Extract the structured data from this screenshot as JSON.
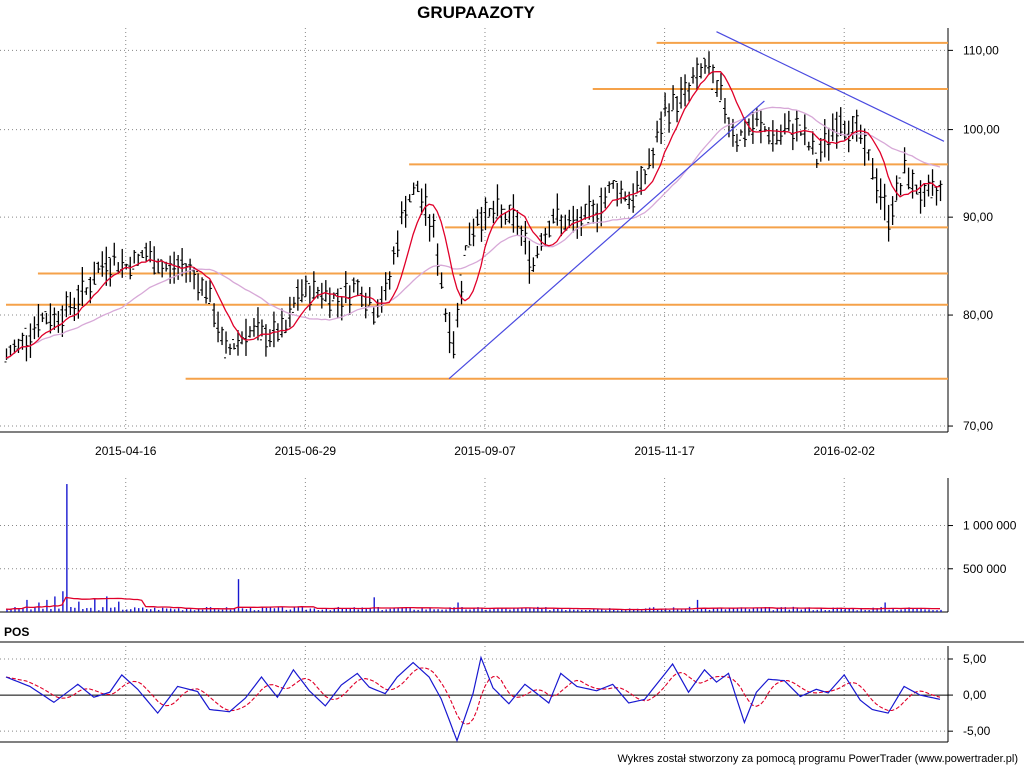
{
  "chart_data": [
    {
      "type": "candlestick",
      "title": "GRUPAAZOTY",
      "x_tick_labels": [
        "2015-04-16",
        "2015-06-29",
        "2015-09-07",
        "2015-11-17",
        "2016-02-02"
      ],
      "y_tick_labels": [
        "110,00",
        "100,00",
        "90,00",
        "80,00",
        "70,00"
      ],
      "y_tick_values": [
        110,
        100,
        90,
        80,
        70
      ],
      "ylim": [
        69.5,
        113
      ],
      "scale": "log",
      "grid": true,
      "colors": {
        "bars": "#000000",
        "sma_short": "#e0002a",
        "sma_long": "#d7a8d7",
        "trendline": "#4a4ae0",
        "levels": "#f5a24a"
      },
      "horizontal_levels": [
        {
          "value": 111.0,
          "from_index": 163
        },
        {
          "value": 105.0,
          "from_index": 147
        },
        {
          "value": 95.9,
          "from_index": 101
        },
        {
          "value": 88.9,
          "from_index": 110
        },
        {
          "value": 84.1,
          "from_index": 8
        },
        {
          "value": 81.0,
          "from_index": 0
        },
        {
          "value": 74.1,
          "from_index": 45
        }
      ],
      "trendlines": [
        {
          "from": [
            111,
            74.1
          ],
          "to": [
            190,
            103.5
          ]
        },
        {
          "from": [
            178,
            112.5
          ],
          "to": [
            235,
            98.6
          ]
        }
      ],
      "n_sessions": 235,
      "x_tick_indices": [
        30,
        75,
        120,
        165,
        210
      ],
      "price_anchors": [
        [
          0,
          76.0
        ],
        [
          5,
          78.0
        ],
        [
          8,
          79.5
        ],
        [
          12,
          79.8
        ],
        [
          15,
          80.5
        ],
        [
          20,
          82.5
        ],
        [
          25,
          85.5
        ],
        [
          30,
          85.0
        ],
        [
          35,
          86.0
        ],
        [
          40,
          84.5
        ],
        [
          45,
          85.0
        ],
        [
          50,
          82.5
        ],
        [
          55,
          76.5
        ],
        [
          60,
          78.5
        ],
        [
          65,
          78.0
        ],
        [
          70,
          78.5
        ],
        [
          73,
          82.0
        ],
        [
          78,
          82.5
        ],
        [
          83,
          81.5
        ],
        [
          88,
          83.0
        ],
        [
          92,
          80.5
        ],
        [
          95,
          82.0
        ],
        [
          100,
          91.5
        ],
        [
          103,
          93.0
        ],
        [
          107,
          88.5
        ],
        [
          110,
          80.5
        ],
        [
          112,
          77.0
        ],
        [
          115,
          86.5
        ],
        [
          118,
          90.0
        ],
        [
          123,
          90.5
        ],
        [
          128,
          89.5
        ],
        [
          132,
          85.0
        ],
        [
          134,
          88.0
        ],
        [
          137,
          90.0
        ],
        [
          142,
          89.0
        ],
        [
          147,
          90.5
        ],
        [
          152,
          93.5
        ],
        [
          157,
          92.0
        ],
        [
          162,
          97.0
        ],
        [
          165,
          102.0
        ],
        [
          170,
          104.5
        ],
        [
          175,
          108.0
        ],
        [
          178,
          105.0
        ],
        [
          183,
          99.0
        ],
        [
          188,
          100.5
        ],
        [
          193,
          99.0
        ],
        [
          198,
          100.5
        ],
        [
          203,
          96.5
        ],
        [
          208,
          101.0
        ],
        [
          213,
          100.0
        ],
        [
          218,
          94.0
        ],
        [
          221,
          90.0
        ],
        [
          225,
          95.0
        ],
        [
          230,
          92.0
        ],
        [
          235,
          93.5
        ]
      ]
    },
    {
      "type": "bar",
      "y_tick_labels": [
        "1 000 000",
        "500 000"
      ],
      "y_tick_values": [
        1000000,
        500000
      ],
      "ylim": [
        0,
        1550000
      ],
      "colors": {
        "bars": "#1818d0",
        "average": "#e0002a"
      },
      "typical_volume": 40000,
      "spikes": [
        {
          "index": 5,
          "value": 140000
        },
        {
          "index": 8,
          "value": 110000
        },
        {
          "index": 10,
          "value": 140000
        },
        {
          "index": 12,
          "value": 180000
        },
        {
          "index": 14,
          "value": 240000
        },
        {
          "index": 15,
          "value": 1480000
        },
        {
          "index": 18,
          "value": 120000
        },
        {
          "index": 22,
          "value": 150000
        },
        {
          "index": 25,
          "value": 180000
        },
        {
          "index": 28,
          "value": 120000
        },
        {
          "index": 58,
          "value": 380000
        },
        {
          "index": 92,
          "value": 170000
        },
        {
          "index": 113,
          "value": 110000
        },
        {
          "index": 173,
          "value": 140000
        },
        {
          "index": 220,
          "value": 110000
        }
      ]
    },
    {
      "type": "line",
      "title": "POS",
      "y_tick_labels": [
        "5,00",
        "0,00",
        "-5,00"
      ],
      "y_tick_values": [
        5,
        0,
        -5
      ],
      "ylim": [
        -6.5,
        6.8
      ],
      "grid": true,
      "colors": {
        "pos": "#1818d0",
        "signal": "#e0002a",
        "zero": "#000000"
      },
      "pos_anchors": [
        [
          0,
          2.5
        ],
        [
          6,
          1.2
        ],
        [
          12,
          -1.0
        ],
        [
          18,
          1.5
        ],
        [
          22,
          -0.3
        ],
        [
          26,
          0.4
        ],
        [
          29,
          2.8
        ],
        [
          33,
          0.8
        ],
        [
          38,
          -2.5
        ],
        [
          43,
          1.2
        ],
        [
          48,
          0.5
        ],
        [
          51,
          -2.0
        ],
        [
          56,
          -2.3
        ],
        [
          60,
          -0.4
        ],
        [
          64,
          2.5
        ],
        [
          68,
          -0.3
        ],
        [
          72,
          3.5
        ],
        [
          76,
          0.6
        ],
        [
          80,
          -1.5
        ],
        [
          84,
          1.4
        ],
        [
          88,
          3.0
        ],
        [
          91,
          1.1
        ],
        [
          95,
          0.2
        ],
        [
          98,
          2.5
        ],
        [
          102,
          4.5
        ],
        [
          106,
          2.5
        ],
        [
          109,
          -0.5
        ],
        [
          113,
          -6.3
        ],
        [
          117,
          0.2
        ],
        [
          119,
          5.2
        ],
        [
          122,
          1.0
        ],
        [
          126,
          -1.2
        ],
        [
          130,
          1.5
        ],
        [
          133,
          0.2
        ],
        [
          136,
          -1.1
        ],
        [
          139,
          3.0
        ],
        [
          143,
          1.2
        ],
        [
          148,
          0.6
        ],
        [
          152,
          1.5
        ],
        [
          156,
          -1.1
        ],
        [
          160,
          -0.6
        ],
        [
          164,
          2.2
        ],
        [
          167,
          4.3
        ],
        [
          171,
          0.4
        ],
        [
          175,
          3.5
        ],
        [
          178,
          1.8
        ],
        [
          181,
          3.0
        ],
        [
          185,
          -3.8
        ],
        [
          188,
          0.4
        ],
        [
          191,
          2.2
        ],
        [
          195,
          2.0
        ],
        [
          199,
          -0.2
        ],
        [
          203,
          0.8
        ],
        [
          206,
          0.3
        ],
        [
          210,
          2.8
        ],
        [
          214,
          -0.7
        ],
        [
          217,
          -2.0
        ],
        [
          221,
          -2.5
        ],
        [
          225,
          1.2
        ],
        [
          229,
          0.0
        ],
        [
          235,
          -0.7
        ]
      ]
    }
  ],
  "footer": "Wykres został stworzony za pomocą programu PowerTrader (www.powertrader.pl)"
}
